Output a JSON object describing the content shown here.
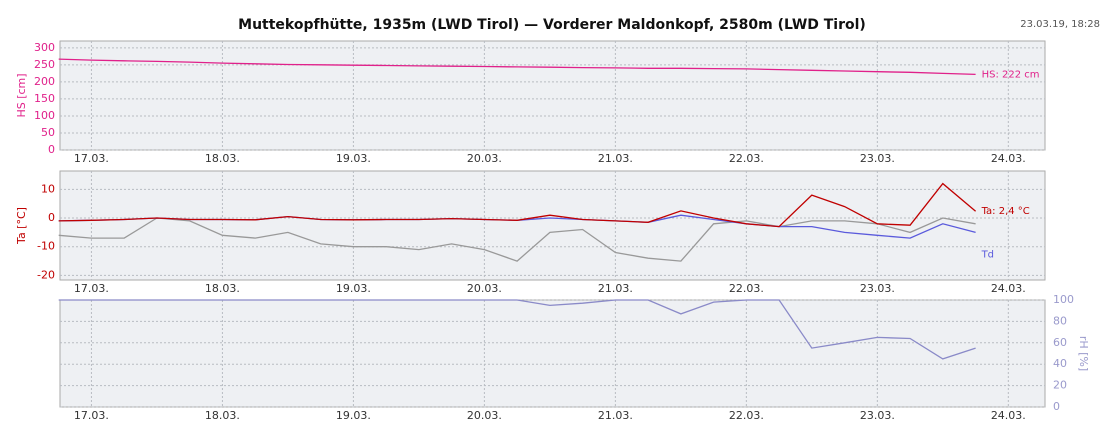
{
  "title": "Muttekopfhütte, 1935m (LWD Tirol) — Vorderer Maldonkopf, 2580m (LWD Tirol)",
  "timestamp": "23.03.19, 18:28",
  "chart_data": [
    {
      "type": "line",
      "ylabel": "HS [cm]",
      "ylabel_color": "#e0208a",
      "y_axis_side": "left",
      "grid": true,
      "x": [
        16.75,
        17,
        17.25,
        17.5,
        17.75,
        18,
        18.25,
        18.5,
        18.75,
        19,
        19.25,
        19.5,
        19.75,
        20,
        20.25,
        20.5,
        20.75,
        21,
        21.25,
        21.5,
        21.75,
        22,
        22.25,
        22.5,
        22.75,
        23,
        23.25,
        23.5,
        23.75
      ],
      "xlim": [
        16.76,
        24.28
      ],
      "xticks": [
        {
          "value": 17,
          "label": "17.03."
        },
        {
          "value": 18,
          "label": "18.03."
        },
        {
          "value": 19,
          "label": "19.03."
        },
        {
          "value": 20,
          "label": "20.03."
        },
        {
          "value": 21,
          "label": "21.03."
        },
        {
          "value": 22,
          "label": "22.03."
        },
        {
          "value": 23,
          "label": "23.03."
        },
        {
          "value": 24,
          "label": "24.03."
        }
      ],
      "ylim": [
        0,
        320
      ],
      "yticks": [
        0,
        50,
        100,
        150,
        200,
        250,
        300
      ],
      "series": [
        {
          "name": "HS: 222 cm",
          "color": "#e0208a",
          "values": [
            267,
            264,
            262,
            260,
            258,
            255,
            253,
            251,
            250,
            249,
            248,
            247,
            246,
            245,
            244,
            243,
            242,
            241,
            240,
            240,
            239,
            238,
            236,
            234,
            232,
            230,
            228,
            225,
            222
          ]
        }
      ]
    },
    {
      "type": "line",
      "ylabel": "Ta [°C]",
      "ylabel_color": "#c00000",
      "y_axis_side": "left",
      "grid": true,
      "x": [
        16.75,
        17,
        17.25,
        17.5,
        17.75,
        18,
        18.25,
        18.5,
        18.75,
        19,
        19.25,
        19.5,
        19.75,
        20,
        20.25,
        20.5,
        20.75,
        21,
        21.25,
        21.5,
        21.75,
        22,
        22.25,
        22.5,
        22.75,
        23,
        23.25,
        23.5,
        23.75
      ],
      "xlim": [
        16.76,
        24.28
      ],
      "xticks": [
        {
          "value": 17,
          "label": "17.03."
        },
        {
          "value": 18,
          "label": "18.03."
        },
        {
          "value": 19,
          "label": "19.03."
        },
        {
          "value": 20,
          "label": "20.03."
        },
        {
          "value": 21,
          "label": "21.03."
        },
        {
          "value": 22,
          "label": "22.03."
        },
        {
          "value": 23,
          "label": "23.03."
        },
        {
          "value": 24,
          "label": "24.03."
        }
      ],
      "ylim": [
        -21.6,
        16.4
      ],
      "yticks": [
        -20,
        -10,
        0,
        10
      ],
      "series": [
        {
          "color": "#999999",
          "values": [
            -6,
            -7,
            -7,
            0,
            -1,
            -6,
            -7,
            -5,
            -9,
            -10,
            -10,
            -11,
            -9,
            -11,
            -15,
            -5,
            -4,
            -12,
            -14,
            -15,
            -2,
            -1,
            -3,
            -1,
            -1,
            -2,
            -5,
            0,
            -2
          ]
        },
        {
          "name": "Td",
          "color": "#5a5adc",
          "values": [
            -1,
            -0.8,
            -0.5,
            0,
            -0.5,
            -0.5,
            -0.6,
            0.5,
            -0.5,
            -0.6,
            -0.5,
            -0.5,
            -0.2,
            -0.5,
            -0.8,
            0,
            -0.5,
            -1,
            -1.5,
            1,
            -0.5,
            -2,
            -3,
            -3,
            -5,
            -6,
            -7,
            -2,
            -5
          ]
        },
        {
          "name": "Ta: 2,4 °C",
          "color": "#c00000",
          "values": [
            -1,
            -0.8,
            -0.5,
            0,
            -0.5,
            -0.5,
            -0.6,
            0.5,
            -0.5,
            -0.6,
            -0.5,
            -0.5,
            -0.2,
            -0.5,
            -0.8,
            1,
            -0.5,
            -1,
            -1.5,
            2.5,
            0,
            -2,
            -3,
            8,
            4,
            -2,
            -2.5,
            12,
            2.4
          ]
        }
      ]
    },
    {
      "type": "line",
      "ylabel": "rH [%]",
      "ylabel_color": "#9a9acc",
      "y_axis_side": "right",
      "grid": true,
      "x": [
        16.75,
        17,
        17.25,
        17.5,
        17.75,
        18,
        18.25,
        18.5,
        18.75,
        19,
        19.25,
        19.5,
        19.75,
        20,
        20.25,
        20.5,
        20.75,
        21,
        21.25,
        21.5,
        21.75,
        22,
        22.25,
        22.5,
        22.75,
        23,
        23.25,
        23.5,
        23.75
      ],
      "xlim": [
        16.76,
        24.28
      ],
      "xticks": [
        {
          "value": 17,
          "label": "17.03."
        },
        {
          "value": 18,
          "label": "18.03."
        },
        {
          "value": 19,
          "label": "19.03."
        },
        {
          "value": 20,
          "label": "20.03."
        },
        {
          "value": 21,
          "label": "21.03."
        },
        {
          "value": 22,
          "label": "22.03."
        },
        {
          "value": 23,
          "label": "23.03."
        },
        {
          "value": 24,
          "label": "24.03."
        }
      ],
      "ylim": [
        0,
        100
      ],
      "yticks": [
        0,
        20,
        40,
        60,
        80,
        100
      ],
      "series": [
        {
          "color": "#8a8ac8",
          "values": [
            100,
            100,
            100,
            100,
            100,
            100,
            100,
            100,
            100,
            100,
            100,
            100,
            100,
            100,
            100,
            95,
            97,
            100,
            100,
            87,
            98,
            100,
            100,
            55,
            60,
            65,
            64,
            45,
            55
          ]
        }
      ]
    }
  ]
}
